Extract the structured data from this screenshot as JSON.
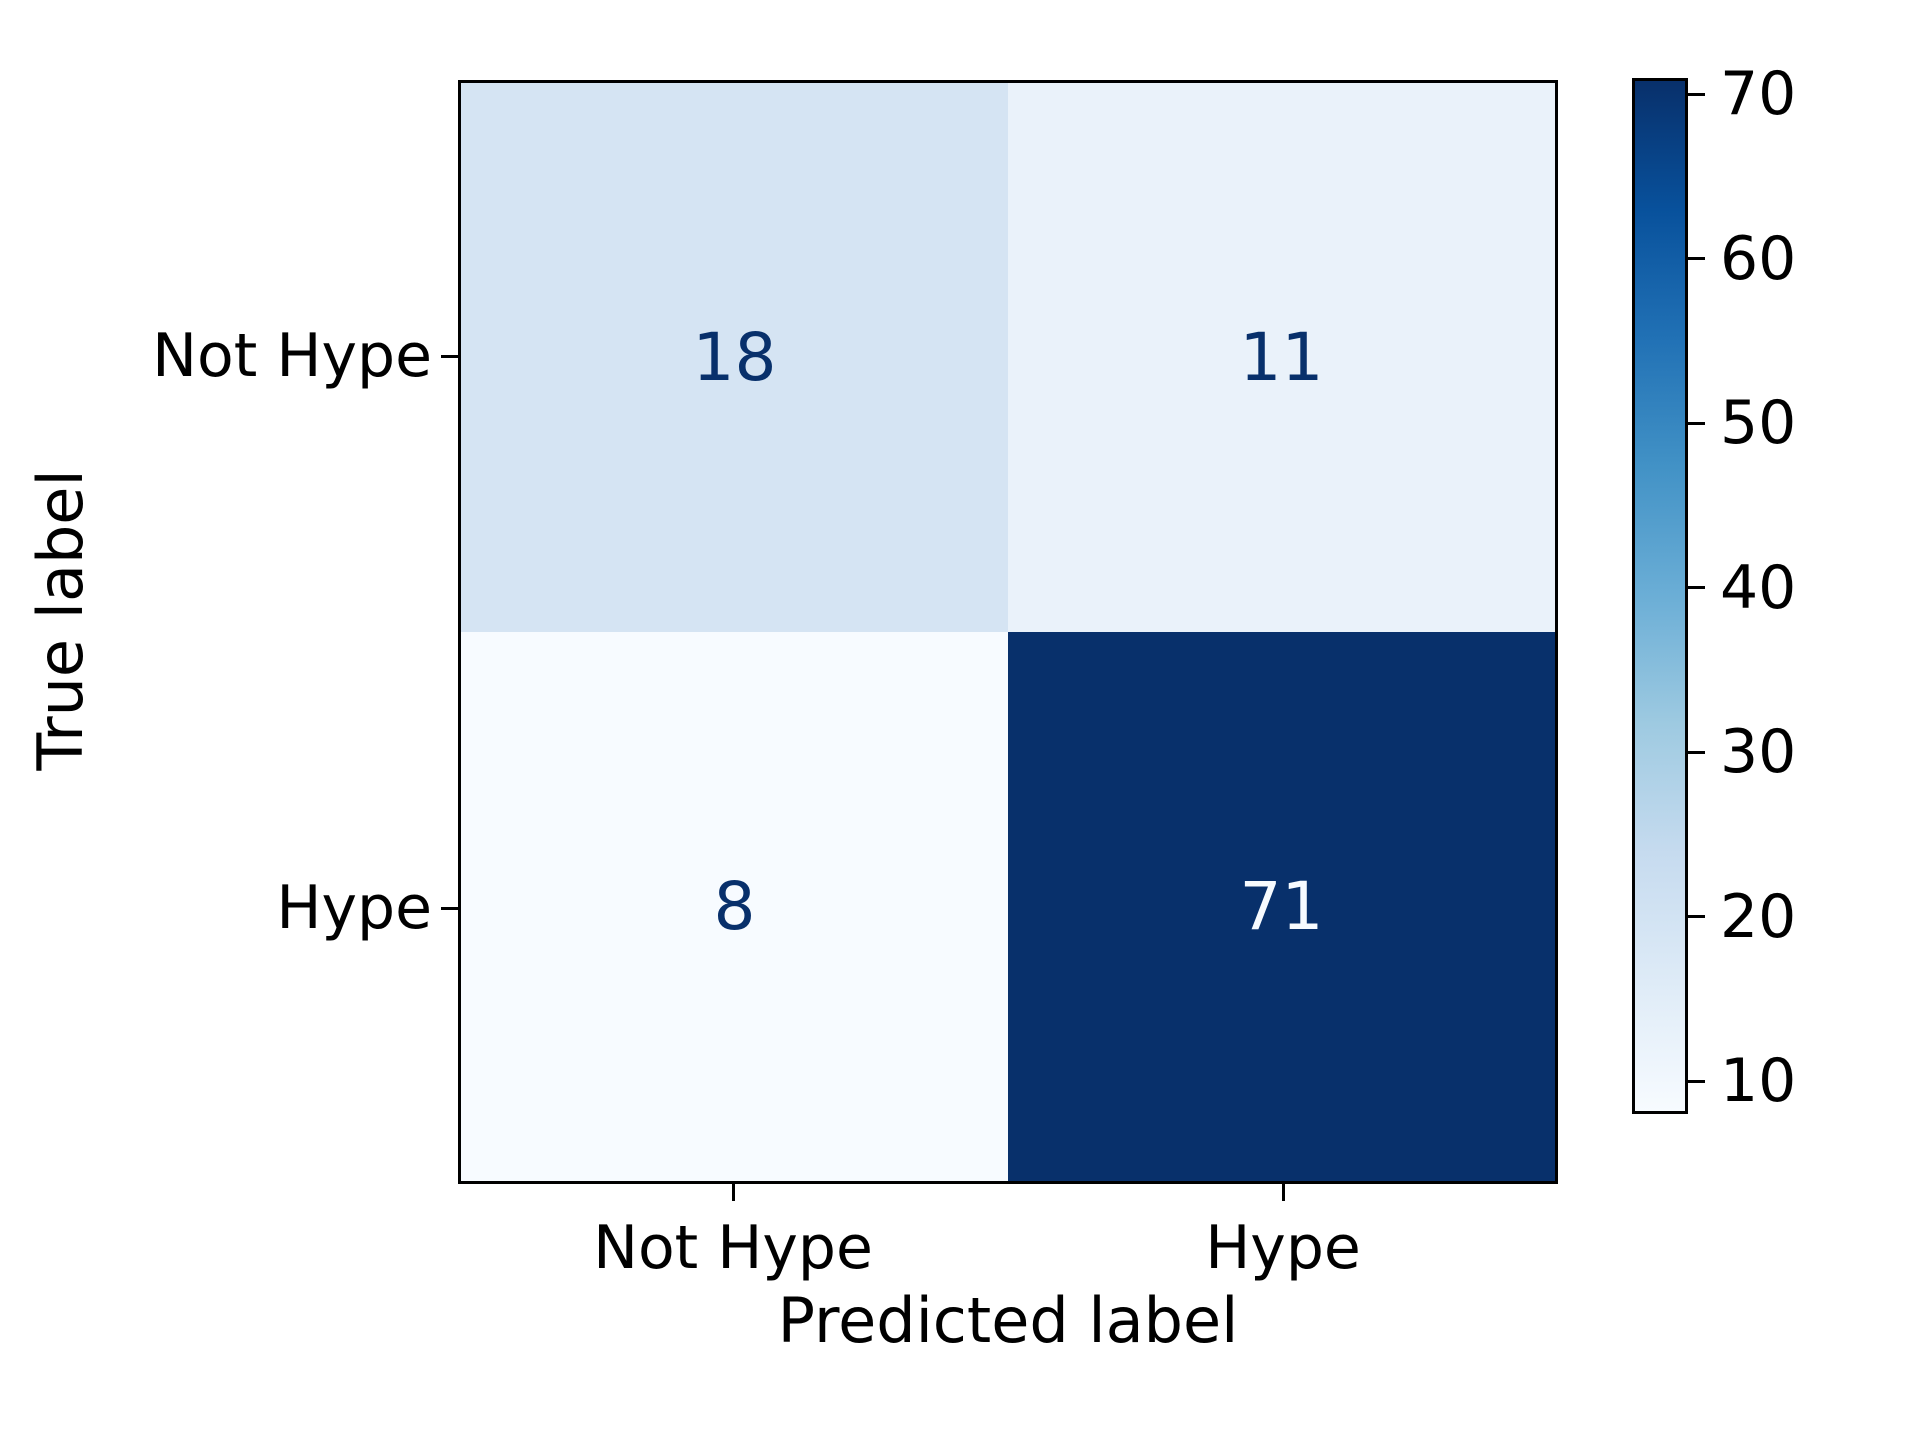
{
  "figure": {
    "background": "#ffffff"
  },
  "chart_data": {
    "type": "heatmap",
    "subtype": "confusion-matrix",
    "title": "",
    "xlabel": "Predicted label",
    "ylabel": "True label",
    "x_categories": [
      "Not Hype",
      "Hype"
    ],
    "y_categories": [
      "Not Hype",
      "Hype"
    ],
    "matrix": [
      [
        18,
        11
      ],
      [
        8,
        71
      ]
    ],
    "vmin": 8,
    "vmax": 71,
    "grid": false,
    "legend_position": "right-colorbar",
    "colormap": "Blues",
    "colormap_stops": [
      "#f7fbff",
      "#deebf7",
      "#c6dbef",
      "#9ecae1",
      "#6baed6",
      "#4292c6",
      "#2171b5",
      "#08519c",
      "#08306b"
    ],
    "colorbar_ticks": [
      10,
      20,
      30,
      40,
      50,
      60,
      70
    ],
    "cell_colors": [
      [
        "#d5e4f3",
        "#eaf2fa"
      ],
      [
        "#f7fbff",
        "#08306b"
      ]
    ],
    "cell_text_colors": [
      [
        "#08306b",
        "#08306b"
      ],
      [
        "#08306b",
        "#f7fbff"
      ]
    ],
    "axis_color": "#000000"
  }
}
